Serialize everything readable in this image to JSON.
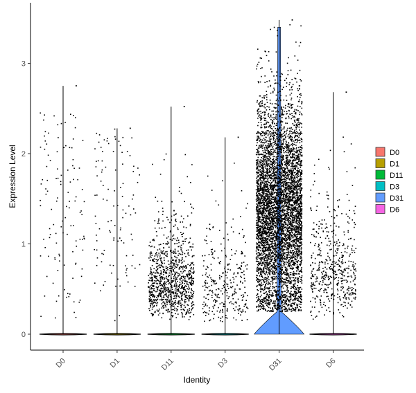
{
  "chart_data": {
    "type": "scatter",
    "subtype": "violin-jitter",
    "title": "",
    "xlabel": "Identity",
    "ylabel": "Expression Level",
    "ylim": [
      -0.2,
      3.55
    ],
    "yticks": [
      "0",
      "1",
      "2",
      "3"
    ],
    "ytick_values": [
      0,
      1,
      2,
      3
    ],
    "categories": [
      "D0",
      "D1",
      "D11",
      "D3",
      "D31",
      "D6"
    ],
    "legend": {
      "position": "right",
      "entries": [
        {
          "name": "D0",
          "color": "#F8766D"
        },
        {
          "name": "D1",
          "color": "#B79F00"
        },
        {
          "name": "D11",
          "color": "#00BA38"
        },
        {
          "name": "D3",
          "color": "#00BFC4"
        },
        {
          "name": "D31",
          "color": "#619CFF"
        },
        {
          "name": "D6",
          "color": "#F564E3"
        }
      ]
    },
    "series": [
      {
        "name": "D0",
        "color": "#F8766D",
        "max": 2.75,
        "points_shown": 120,
        "violin_peak_at_zero": true
      },
      {
        "name": "D1",
        "color": "#B79F00",
        "max": 2.28,
        "points_shown": 110,
        "violin_peak_at_zero": true
      },
      {
        "name": "D11",
        "color": "#00BA38",
        "max": 2.52,
        "points_shown": 1000,
        "violin_peak_at_zero": true
      },
      {
        "name": "D3",
        "color": "#00BFC4",
        "max": 2.18,
        "points_shown": 320,
        "violin_peak_at_zero": true
      },
      {
        "name": "D31",
        "color": "#619CFF",
        "max": 3.48,
        "points_shown": 5500,
        "violin_peak_at_zero": true
      },
      {
        "name": "D6",
        "color": "#F564E3",
        "max": 2.68,
        "points_shown": 520,
        "violin_peak_at_zero": true
      }
    ]
  }
}
